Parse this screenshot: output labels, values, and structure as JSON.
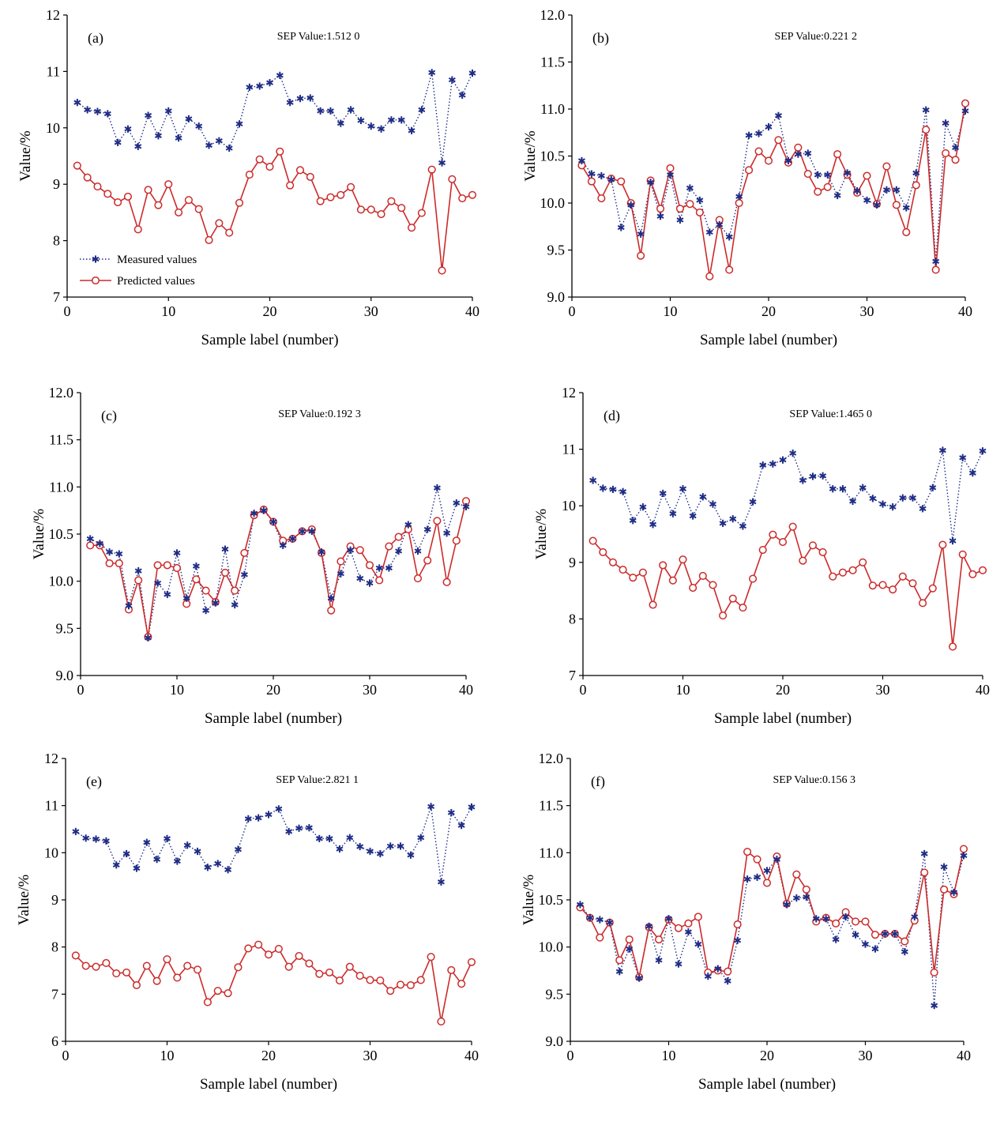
{
  "colors": {
    "measured": "#1f2d86",
    "predicted": "#cc2b2b",
    "axis": "#000000"
  },
  "legend": {
    "measured": "Measured values",
    "predicted": "Predicted values"
  },
  "chart_data": [
    {
      "type": "line",
      "label": "(a)",
      "sep": "SEP Value:1.512 0",
      "xlabel": "Sample label (number)",
      "ylabel": "Value/%",
      "xlim": [
        0,
        40
      ],
      "ylim": [
        7,
        12
      ],
      "xticks": [
        "0",
        "10",
        "20",
        "30",
        "40"
      ],
      "yticks": [
        "7",
        "8",
        "9",
        "10",
        "11",
        "12"
      ],
      "grid": false,
      "legend_position": "bottom-left",
      "series": [
        {
          "name": "Measured values",
          "values": [
            10.45,
            10.32,
            10.29,
            10.25,
            9.74,
            9.98,
            9.67,
            10.22,
            9.86,
            10.3,
            9.82,
            10.16,
            10.03,
            9.69,
            9.77,
            9.64,
            10.07,
            10.72,
            10.74,
            10.8,
            10.93,
            10.45,
            10.52,
            10.53,
            10.3,
            10.3,
            10.08,
            10.32,
            10.13,
            10.03,
            9.98,
            10.14,
            10.14,
            9.95,
            10.32,
            10.98,
            9.38,
            10.85,
            10.58,
            10.97
          ]
        },
        {
          "name": "Predicted values",
          "values": [
            9.33,
            9.12,
            8.96,
            8.83,
            8.68,
            8.78,
            8.2,
            8.9,
            8.63,
            9.0,
            8.5,
            8.72,
            8.56,
            8.01,
            8.31,
            8.14,
            8.67,
            9.17,
            9.44,
            9.31,
            9.58,
            8.98,
            9.25,
            9.13,
            8.7,
            8.77,
            8.81,
            8.95,
            8.55,
            8.55,
            8.47,
            8.7,
            8.58,
            8.23,
            8.49,
            9.26,
            7.47,
            9.09,
            8.75,
            8.81
          ]
        }
      ]
    },
    {
      "type": "line",
      "label": "(b)",
      "sep": "SEP Value:0.221 2",
      "xlabel": "Sample label (number)",
      "ylabel": "Value/%",
      "xlim": [
        0,
        40
      ],
      "ylim": [
        9.0,
        12.0
      ],
      "xticks": [
        "0",
        "10",
        "20",
        "30",
        "40"
      ],
      "yticks": [
        "9.0",
        "9.5",
        "10.0",
        "10.5",
        "11.0",
        "11.5",
        "12.0"
      ],
      "grid": false,
      "series": [
        {
          "name": "Measured values",
          "values": [
            10.45,
            10.31,
            10.29,
            10.25,
            9.74,
            9.98,
            9.67,
            10.22,
            9.86,
            10.3,
            9.82,
            10.16,
            10.03,
            9.69,
            9.77,
            9.64,
            10.07,
            10.72,
            10.74,
            10.81,
            10.93,
            10.45,
            10.52,
            10.53,
            10.3,
            10.3,
            10.08,
            10.32,
            10.13,
            10.03,
            9.98,
            10.14,
            10.14,
            9.95,
            10.32,
            10.99,
            9.38,
            10.85,
            10.59,
            10.98
          ]
        },
        {
          "name": "Predicted values",
          "values": [
            10.4,
            10.23,
            10.05,
            10.26,
            10.23,
            10.0,
            9.44,
            10.24,
            9.94,
            10.37,
            9.94,
            9.99,
            9.9,
            9.22,
            9.82,
            9.29,
            10.0,
            10.35,
            10.55,
            10.45,
            10.67,
            10.43,
            10.59,
            10.31,
            10.12,
            10.17,
            10.52,
            10.3,
            10.11,
            10.29,
            9.99,
            10.39,
            9.98,
            9.69,
            10.19,
            10.78,
            9.29,
            10.53,
            10.46,
            11.06
          ]
        }
      ]
    },
    {
      "type": "line",
      "label": "(c)",
      "sep": "SEP Value:0.192 3",
      "xlabel": "Sample label (number)",
      "ylabel": "Value/%",
      "xlim": [
        0,
        40
      ],
      "ylim": [
        9.0,
        12.0
      ],
      "xticks": [
        "0",
        "10",
        "20",
        "30",
        "40"
      ],
      "yticks": [
        "9.0",
        "9.5",
        "10.0",
        "10.5",
        "11.0",
        "11.5",
        "12.0"
      ],
      "grid": false,
      "series": [
        {
          "name": "Measured values",
          "values": [
            10.45,
            10.4,
            10.31,
            10.29,
            9.74,
            10.11,
            9.4,
            9.98,
            9.86,
            10.3,
            9.82,
            10.16,
            9.69,
            9.77,
            10.34,
            9.75,
            10.07,
            10.72,
            10.75,
            10.63,
            10.38,
            10.45,
            10.53,
            10.53,
            10.31,
            9.82,
            10.08,
            10.33,
            10.03,
            9.98,
            10.14,
            10.14,
            10.32,
            10.6,
            10.32,
            10.55,
            10.99,
            10.51,
            10.83,
            10.79
          ]
        },
        {
          "name": "Predicted values",
          "values": [
            10.38,
            10.38,
            10.19,
            10.19,
            9.7,
            10.01,
            9.41,
            10.17,
            10.17,
            10.14,
            9.76,
            10.02,
            9.9,
            9.78,
            10.09,
            9.9,
            10.3,
            10.7,
            10.76,
            10.63,
            10.43,
            10.45,
            10.53,
            10.55,
            10.3,
            9.69,
            10.21,
            10.37,
            10.33,
            10.17,
            10.01,
            10.37,
            10.47,
            10.55,
            10.03,
            10.22,
            10.64,
            9.99,
            10.43,
            10.85
          ]
        }
      ]
    },
    {
      "type": "line",
      "label": "(d)",
      "sep": "SEP Value:1.465 0",
      "xlabel": "Sample label (number)",
      "ylabel": "Value/%",
      "xlim": [
        0,
        40
      ],
      "ylim": [
        7,
        12
      ],
      "xticks": [
        "0",
        "10",
        "20",
        "30",
        "40"
      ],
      "yticks": [
        "7",
        "8",
        "9",
        "10",
        "11",
        "12"
      ],
      "grid": false,
      "series": [
        {
          "name": "Measured values",
          "values": [
            10.45,
            10.31,
            10.29,
            10.25,
            9.74,
            9.98,
            9.67,
            10.22,
            9.86,
            10.3,
            9.82,
            10.16,
            10.03,
            9.69,
            9.77,
            9.64,
            10.07,
            10.72,
            10.74,
            10.81,
            10.93,
            10.45,
            10.52,
            10.53,
            10.3,
            10.3,
            10.08,
            10.32,
            10.13,
            10.03,
            9.98,
            10.14,
            10.14,
            9.95,
            10.32,
            10.98,
            9.38,
            10.85,
            10.58,
            10.97
          ]
        },
        {
          "name": "Predicted values",
          "values": [
            9.38,
            9.18,
            9.0,
            8.87,
            8.73,
            8.82,
            8.25,
            8.95,
            8.68,
            9.05,
            8.55,
            8.76,
            8.6,
            8.06,
            8.36,
            8.2,
            8.71,
            9.22,
            9.49,
            9.36,
            9.63,
            9.03,
            9.3,
            9.18,
            8.75,
            8.82,
            8.86,
            9.0,
            8.59,
            8.6,
            8.52,
            8.75,
            8.63,
            8.28,
            8.54,
            9.31,
            7.51,
            9.14,
            8.79,
            8.86
          ]
        }
      ]
    },
    {
      "type": "line",
      "label": "(e)",
      "sep": "SEP Value:2.821 1",
      "xlabel": "Sample label (number)",
      "ylabel": "Value/%",
      "xlim": [
        0,
        40
      ],
      "ylim": [
        6,
        12
      ],
      "xticks": [
        "0",
        "10",
        "20",
        "30",
        "40"
      ],
      "yticks": [
        "6",
        "7",
        "8",
        "9",
        "10",
        "11",
        "12"
      ],
      "grid": false,
      "series": [
        {
          "name": "Measured values",
          "values": [
            10.45,
            10.31,
            10.29,
            10.25,
            9.74,
            9.98,
            9.67,
            10.22,
            9.86,
            10.3,
            9.82,
            10.16,
            10.03,
            9.69,
            9.77,
            9.64,
            10.07,
            10.72,
            10.74,
            10.81,
            10.93,
            10.45,
            10.52,
            10.53,
            10.3,
            10.3,
            10.08,
            10.32,
            10.13,
            10.03,
            9.98,
            10.14,
            10.14,
            9.95,
            10.32,
            10.98,
            9.38,
            10.85,
            10.58,
            10.97
          ]
        },
        {
          "name": "Predicted values",
          "values": [
            7.82,
            7.6,
            7.58,
            7.66,
            7.44,
            7.46,
            7.19,
            7.6,
            7.28,
            7.74,
            7.35,
            7.6,
            7.52,
            6.83,
            7.07,
            7.02,
            7.57,
            7.97,
            8.05,
            7.84,
            7.96,
            7.58,
            7.81,
            7.65,
            7.43,
            7.46,
            7.29,
            7.58,
            7.39,
            7.3,
            7.29,
            7.07,
            7.2,
            7.19,
            7.3,
            7.79,
            6.42,
            7.51,
            7.22,
            7.68
          ]
        }
      ]
    },
    {
      "type": "line",
      "label": "(f)",
      "sep": "SEP Value:0.156 3",
      "xlabel": "Sample label (number)",
      "ylabel": "Value/%",
      "xlim": [
        0,
        40
      ],
      "ylim": [
        9.0,
        12.0
      ],
      "xticks": [
        "0",
        "10",
        "20",
        "30",
        "40"
      ],
      "yticks": [
        "9.0",
        "9.5",
        "10.0",
        "10.5",
        "11.0",
        "11.5",
        "12.0"
      ],
      "grid": false,
      "series": [
        {
          "name": "Measured values",
          "values": [
            10.45,
            10.31,
            10.29,
            10.26,
            9.74,
            9.98,
            9.67,
            10.22,
            9.86,
            10.3,
            9.82,
            10.16,
            10.03,
            9.69,
            9.77,
            9.64,
            10.07,
            10.72,
            10.74,
            10.81,
            10.93,
            10.45,
            10.52,
            10.53,
            10.3,
            10.3,
            10.08,
            10.32,
            10.13,
            10.03,
            9.98,
            10.14,
            10.14,
            9.95,
            10.32,
            10.99,
            9.38,
            10.85,
            10.58,
            10.97
          ]
        },
        {
          "name": "Predicted values",
          "values": [
            10.42,
            10.31,
            10.1,
            10.26,
            9.86,
            10.08,
            9.68,
            10.21,
            10.08,
            10.29,
            10.2,
            10.25,
            10.32,
            9.73,
            9.75,
            9.74,
            10.24,
            11.01,
            10.93,
            10.68,
            10.96,
            10.46,
            10.77,
            10.61,
            10.27,
            10.31,
            10.25,
            10.37,
            10.27,
            10.27,
            10.13,
            10.14,
            10.14,
            10.06,
            10.28,
            10.79,
            9.73,
            10.61,
            10.56,
            11.04
          ]
        }
      ]
    }
  ]
}
